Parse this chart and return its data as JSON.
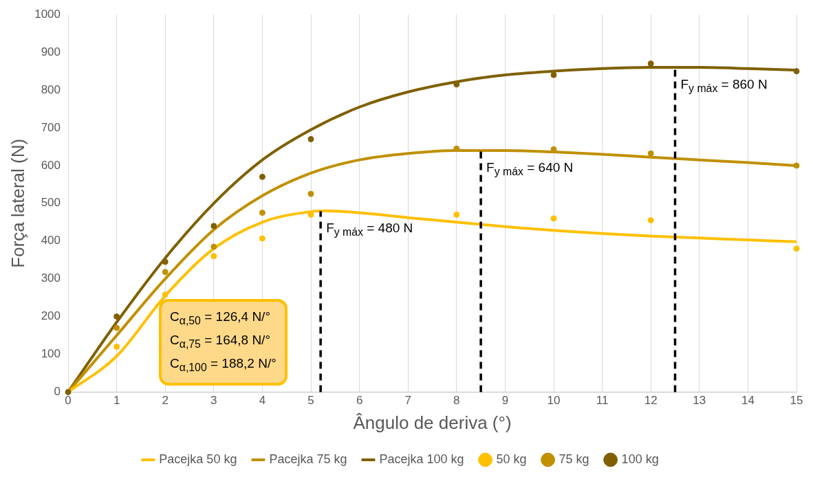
{
  "chart_data": {
    "type": "line",
    "xlabel": "Ângulo de deriva (°)",
    "ylabel": "Força lateral (N)",
    "xlim": [
      0,
      15
    ],
    "xticks": [
      0,
      1,
      2,
      3,
      4,
      5,
      6,
      7,
      8,
      9,
      10,
      11,
      12,
      13,
      14,
      15
    ],
    "ylim": [
      0,
      1000
    ],
    "yticks": [
      0,
      100,
      200,
      300,
      400,
      500,
      600,
      700,
      800,
      900,
      1000
    ],
    "grid": "x",
    "legend": "bottom",
    "series": [
      {
        "name": "Pacejka 50 kg",
        "type": "line",
        "marker": "none",
        "color": "#ffc000",
        "x": [
          0,
          1,
          2,
          3,
          4,
          5,
          5.3,
          6,
          7,
          8,
          9,
          10,
          11,
          12,
          13,
          14,
          15
        ],
        "values": [
          0,
          95,
          255,
          380,
          450,
          478,
          480,
          475,
          462,
          450,
          438,
          428,
          420,
          413,
          408,
          403,
          398
        ]
      },
      {
        "name": "Pacejka 75 kg",
        "type": "line",
        "marker": "none",
        "color": "#c09000",
        "x": [
          0,
          1,
          2,
          3,
          4,
          5,
          6,
          7,
          8,
          8.5,
          9,
          10,
          11,
          12,
          13,
          14,
          15
        ],
        "values": [
          0,
          150,
          300,
          430,
          520,
          580,
          615,
          632,
          640,
          640,
          640,
          636,
          630,
          622,
          615,
          608,
          600
        ]
      },
      {
        "name": "Pacejka 100 kg",
        "type": "line",
        "marker": "none",
        "color": "#7f6000",
        "x": [
          0,
          1,
          2,
          3,
          4,
          5,
          6,
          7,
          8,
          9,
          10,
          11,
          12,
          12.5,
          13,
          14,
          15
        ],
        "values": [
          0,
          185,
          355,
          500,
          615,
          695,
          755,
          795,
          822,
          840,
          850,
          857,
          860,
          860,
          860,
          857,
          853
        ]
      },
      {
        "name": "50 kg",
        "type": "scatter",
        "marker": "circle",
        "color": "#ffc000",
        "x": [
          1,
          2,
          3,
          4,
          5,
          8,
          10,
          12,
          15
        ],
        "values": [
          120,
          258,
          360,
          407,
          470,
          470,
          460,
          455,
          380
        ]
      },
      {
        "name": "75 kg",
        "type": "scatter",
        "marker": "circle",
        "color": "#c09000",
        "x": [
          1,
          2,
          3,
          4,
          5,
          8,
          10,
          12,
          15
        ],
        "values": [
          170,
          318,
          385,
          475,
          525,
          645,
          643,
          632,
          600
        ]
      },
      {
        "name": "100 kg",
        "type": "scatter",
        "marker": "circle",
        "color": "#806000",
        "x": [
          0,
          1,
          2,
          3,
          4,
          5,
          8,
          10,
          12,
          15
        ],
        "values": [
          0,
          200,
          345,
          440,
          570,
          670,
          815,
          840,
          870,
          850
        ]
      }
    ],
    "ref_lines": [
      {
        "axis": "x",
        "value": 5.2,
        "color": "#000000",
        "line_style": "dashed"
      },
      {
        "axis": "x",
        "value": 8.5,
        "color": "#000000",
        "line_style": "dashed"
      },
      {
        "axis": "x",
        "value": 12.5,
        "color": "#000000",
        "line_style": "dashed"
      }
    ],
    "annotations": [
      "C$_{α,50}$ = 126,4 N/°",
      "C$_{α,75}$ = 164,8 N/°",
      "C$_{α,100}$ = 188,2 N/°",
      {
        "text": "F$_{y máx}$ = 480 N",
        "x": 5.2,
        "y": 480
      },
      {
        "text": "F$_{y máx}$ = 640 N",
        "x": 8.5,
        "y": 640
      },
      {
        "text": "F$_{y máx}$ = 860 N",
        "x": 12.5,
        "y": 860
      }
    ]
  }
}
